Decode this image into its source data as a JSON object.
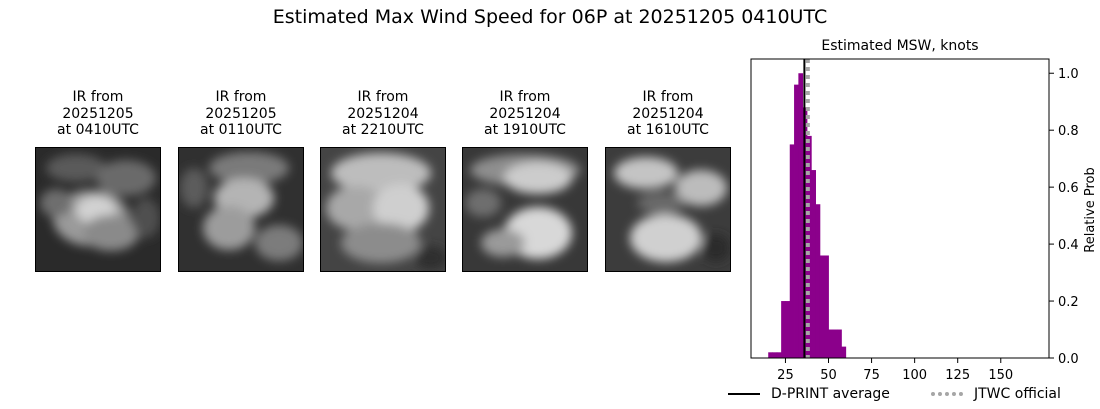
{
  "title": "Estimated Max Wind Speed for 06P at 20251205 0410UTC",
  "panels": [
    {
      "line1": "IR from",
      "line2": "20251205",
      "line3": "at 0410UTC"
    },
    {
      "line1": "IR from",
      "line2": "20251205",
      "line3": "at 0110UTC"
    },
    {
      "line1": "IR from",
      "line2": "20251204",
      "line3": "at 2210UTC"
    },
    {
      "line1": "IR from",
      "line2": "20251204",
      "line3": "at 1910UTC"
    },
    {
      "line1": "IR from",
      "line2": "20251204",
      "line3": "at 1610UTC"
    }
  ],
  "chart_data": {
    "type": "bar",
    "title": "Estimated MSW, knots",
    "xlabel": "",
    "ylabel": "Relative Prob",
    "xlim": [
      5,
      178
    ],
    "ylim": [
      0,
      1.05
    ],
    "xticks": [
      25,
      50,
      75,
      100,
      125,
      150
    ],
    "yticks": [
      0.0,
      0.2,
      0.4,
      0.6,
      0.8,
      1.0
    ],
    "y_axis_side": "right",
    "bar_color": "#8b008b",
    "bin_width": 2.5,
    "bins": [
      {
        "x": 15,
        "y": 0.02
      },
      {
        "x": 17.5,
        "y": 0.02
      },
      {
        "x": 20,
        "y": 0.02
      },
      {
        "x": 22.5,
        "y": 0.2
      },
      {
        "x": 25,
        "y": 0.2
      },
      {
        "x": 27.5,
        "y": 0.75
      },
      {
        "x": 30,
        "y": 0.96
      },
      {
        "x": 32.5,
        "y": 1.0
      },
      {
        "x": 35,
        "y": 0.88
      },
      {
        "x": 37.5,
        "y": 0.78
      },
      {
        "x": 40,
        "y": 0.66
      },
      {
        "x": 42.5,
        "y": 0.54
      },
      {
        "x": 45,
        "y": 0.36
      },
      {
        "x": 47.5,
        "y": 0.36
      },
      {
        "x": 50,
        "y": 0.1
      },
      {
        "x": 52.5,
        "y": 0.1
      },
      {
        "x": 55,
        "y": 0.1
      },
      {
        "x": 57.5,
        "y": 0.04
      }
    ],
    "dprint_average": 36,
    "jtwc_official": 38,
    "legend": [
      {
        "label": "D-PRINT average",
        "style": "solid",
        "color": "#000000"
      },
      {
        "label": "JTWC official",
        "style": "dotted",
        "color": "#a6a6a6"
      }
    ],
    "legend_position": "bottom-right"
  }
}
